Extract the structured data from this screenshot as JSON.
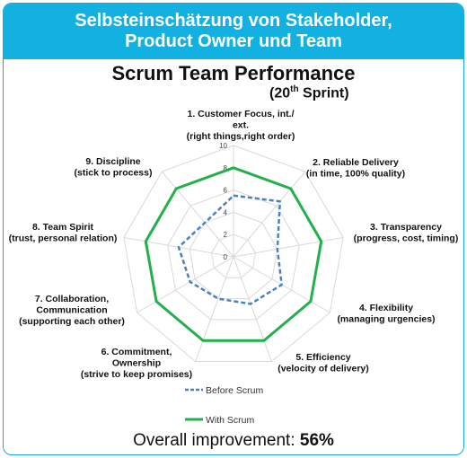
{
  "header": {
    "line1": "Selbsteinschätzung von Stakeholder,",
    "line2": "Product Owner und Team"
  },
  "chart_title": "Scrum Team Performance",
  "chart_subtitle": {
    "prefix": "(20",
    "sup": "th",
    "suffix": " Sprint)"
  },
  "overall": {
    "label": "Overall improvement:",
    "value": "56%"
  },
  "colors": {
    "header_bg": "#12b1e1",
    "before": "#4f7fbd",
    "with": "#22b04b",
    "grid": "#d9d9d9"
  },
  "chart_data": {
    "type": "radar",
    "rlim": [
      0,
      10
    ],
    "ticks": [
      "0",
      "2",
      "4",
      "6",
      "8",
      "10"
    ],
    "categories": [
      [
        "1. Customer Focus, int./",
        "ext.",
        "(right things,right order)"
      ],
      [
        "2. Reliable Delivery",
        "(in time, 100% quality)"
      ],
      [
        "3. Transparency",
        "(progress, cost, timing)"
      ],
      [
        "4. Flexibility",
        "(managing urgencies)"
      ],
      [
        "5. Efficiency",
        "(velocity of delivery)"
      ],
      [
        "6. Commitment,",
        "Ownership",
        "(strive to keep promises)"
      ],
      [
        "7. Collaboration,",
        "Communication",
        "(supporting each other)"
      ],
      [
        "8. Team Spirit",
        "(trust, personal relation)"
      ],
      [
        "9. Discipline",
        "(stick to process)"
      ]
    ],
    "series": [
      {
        "name": "Before Scrum",
        "style": "dashed",
        "values": [
          5.5,
          6.5,
          4,
          5,
          4.5,
          4,
          4.5,
          5,
          4
        ]
      },
      {
        "name": "With Scrum",
        "style": "solid",
        "values": [
          8,
          8,
          8,
          8,
          8,
          8,
          8,
          8,
          8
        ]
      }
    ],
    "legend_position": "bottom-center"
  }
}
